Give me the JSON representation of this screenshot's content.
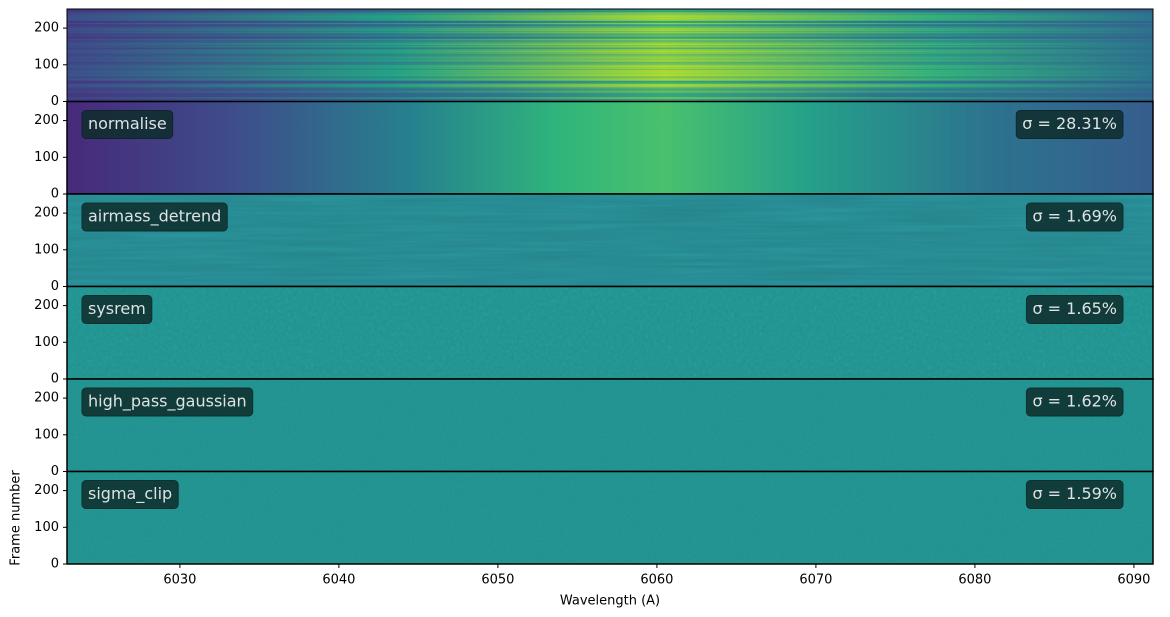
{
  "chart_data": {
    "type": "heatmap-stack",
    "x_label": "Wavelength (A)",
    "y_label": "Frame number",
    "xlim": [
      6022.9,
      6091.2
    ],
    "xticks": [
      6030,
      6040,
      6050,
      6060,
      6070,
      6080,
      6090
    ],
    "ylim": [
      0,
      252
    ],
    "yticks": [
      0,
      100,
      200
    ],
    "steps": [
      "normalise",
      "airmass_detrend",
      "sysrem",
      "high_pass_gaussian",
      "sigma_clip"
    ],
    "sigma_labels": [
      "σ = 28.31%",
      "σ = 1.69%",
      "σ = 1.65%",
      "σ = 1.62%",
      "σ = 1.59%"
    ]
  }
}
